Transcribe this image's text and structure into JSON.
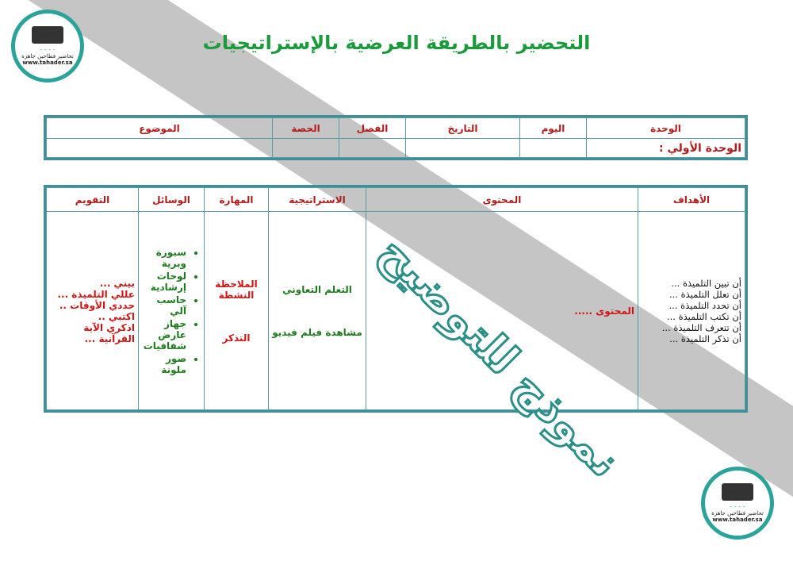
{
  "title": "التحضير بالطريقة العرضية بالإستراتيجيات",
  "info_table": {
    "headers": [
      "الوحدة",
      "اليوم",
      "التاريخ",
      "الفصل",
      "الحصة",
      "الموضوع"
    ],
    "values": [
      "الوحدة الأولي :",
      "",
      "",
      "",
      "",
      ""
    ]
  },
  "plan_table": {
    "headers": [
      "الأهداف",
      "المحتوى",
      "الاستراتيجية",
      "المهارة",
      "الوسائل",
      "التقويم"
    ],
    "objectives": [
      "أن تبين التلميذة ...",
      "أن تعلل التلميذة ...",
      "أن تحدد التلميذة ...",
      "أن تكتب التلميذة ...",
      "أن تتعرف التلميذة ...",
      "أن تذكر التلميذة ..."
    ],
    "content": "المحتوى .....",
    "strategies": [
      "التعلم التعاوني",
      "مشاهدة فيلم فيديو"
    ],
    "skills": [
      "الملاحظة النشطة",
      "التذكر"
    ],
    "tools": [
      "سبورة وبرية",
      "لوحات إرشادية",
      "حاسب آلي",
      "جهاز عارض شفافيات",
      "صور ملونة"
    ],
    "evaluation": [
      "بيني ...",
      "عللي التلميذة ...",
      "حددي الأوقات ..",
      "اكتبي ..",
      "اذكري الآية القرآنية ..."
    ]
  },
  "watermark": "نموذج للتوضيح",
  "logo": {
    "name": "تحاضير فطاحين جاهزة",
    "url": "www.tahader.sa"
  },
  "colors": {
    "title": "#1a9a3a",
    "header": "#b31b1b",
    "border": "#3f8f9a",
    "watermark": "#2a8f87"
  }
}
